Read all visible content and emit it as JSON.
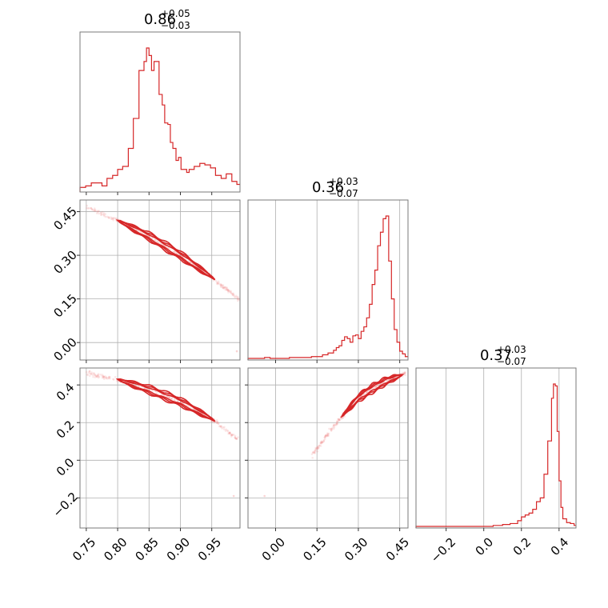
{
  "chart_data": [
    {
      "type": "histogram",
      "panel": "p0-hist",
      "title_median": "0.86",
      "title_plus": "+0.05",
      "title_minus": "−0.03",
      "xlim": [
        0.74,
        0.995
      ],
      "xticks": [
        0.75,
        0.8,
        0.85,
        0.9,
        0.95
      ],
      "xtick_labels": [
        "0.75",
        "0.80",
        "0.85",
        "0.90",
        "0.95"
      ],
      "bins": [
        0.74,
        0.749,
        0.758,
        0.766,
        0.775,
        0.783,
        0.792,
        0.8,
        0.808,
        0.817,
        0.825,
        0.834,
        0.838,
        0.842,
        0.846,
        0.85,
        0.854,
        0.858,
        0.866,
        0.871,
        0.875,
        0.88,
        0.884,
        0.888,
        0.893,
        0.897,
        0.901,
        0.905,
        0.91,
        0.914,
        0.922,
        0.931,
        0.939,
        0.948,
        0.956,
        0.965,
        0.973,
        0.982,
        0.99,
        0.995
      ],
      "counts": [
        2,
        3,
        5,
        5,
        3,
        8,
        10,
        14,
        16,
        28,
        48,
        80,
        80,
        86,
        95,
        90,
        80,
        86,
        64,
        57,
        45,
        44,
        32,
        28,
        20,
        22,
        14,
        14,
        12,
        14,
        16,
        18,
        17,
        15,
        10,
        8,
        11,
        6,
        4
      ]
    },
    {
      "type": "histogram",
      "panel": "p1-hist",
      "title_median": "0.36",
      "title_plus": "+0.03",
      "title_minus": "−0.07",
      "xlim": [
        -0.1,
        0.48
      ],
      "xticks": [
        0.0,
        0.15,
        0.3,
        0.45
      ],
      "xtick_labels": [
        "0.00",
        "0.15",
        "0.30",
        "0.45"
      ],
      "bins": [
        -0.1,
        -0.04,
        -0.02,
        0.05,
        0.1,
        0.13,
        0.15,
        0.17,
        0.19,
        0.21,
        0.22,
        0.23,
        0.24,
        0.25,
        0.26,
        0.27,
        0.28,
        0.29,
        0.3,
        0.31,
        0.32,
        0.33,
        0.34,
        0.35,
        0.36,
        0.37,
        0.38,
        0.39,
        0.4,
        0.41,
        0.42,
        0.43,
        0.44,
        0.45,
        0.46,
        0.47,
        0.48
      ],
      "counts": [
        0,
        1,
        0,
        1,
        1,
        2,
        2,
        4,
        6,
        9,
        12,
        14,
        20,
        24,
        22,
        18,
        25,
        26,
        22,
        30,
        35,
        45,
        60,
        82,
        98,
        125,
        140,
        155,
        158,
        108,
        66,
        32,
        18,
        8,
        5,
        2
      ]
    },
    {
      "type": "histogram",
      "panel": "p2-hist",
      "title_median": "0.37",
      "title_plus": "+0.03",
      "title_minus": "−0.07",
      "xlim": [
        -0.36,
        0.49
      ],
      "xticks": [
        -0.2,
        0.0,
        0.2,
        0.4
      ],
      "xtick_labels": [
        "−0.2",
        "0.0",
        "0.2",
        "0.4"
      ],
      "bins": [
        -0.36,
        0.05,
        0.1,
        0.14,
        0.18,
        0.2,
        0.22,
        0.24,
        0.26,
        0.28,
        0.3,
        0.32,
        0.34,
        0.36,
        0.37,
        0.38,
        0.39,
        0.4,
        0.41,
        0.42,
        0.44,
        0.46,
        0.48,
        0.49
      ],
      "counts": [
        0,
        1,
        2,
        3,
        6,
        10,
        12,
        14,
        18,
        26,
        30,
        55,
        90,
        135,
        150,
        148,
        100,
        48,
        20,
        8,
        4,
        3,
        1
      ]
    },
    {
      "type": "scatter",
      "panel": "p10",
      "xlim": [
        0.74,
        0.995
      ],
      "ylim": [
        -0.06,
        0.49
      ],
      "yticks": [
        0.0,
        0.15,
        0.3,
        0.45
      ],
      "ytick_labels": [
        "0.00",
        "0.15",
        "0.30",
        "0.45"
      ],
      "trend": [
        [
          0.75,
          0.465
        ],
        [
          0.8,
          0.42
        ],
        [
          0.85,
          0.365
        ],
        [
          0.9,
          0.3
        ],
        [
          0.95,
          0.225
        ],
        [
          0.995,
          0.145
        ]
      ],
      "contour_x_range": [
        0.8,
        0.955
      ],
      "outliers": [
        [
          0.99,
          -0.03
        ]
      ]
    },
    {
      "type": "scatter",
      "panel": "p20",
      "xlim": [
        0.74,
        0.995
      ],
      "ylim": [
        -0.36,
        0.49
      ],
      "yticks": [
        -0.2,
        0.0,
        0.2,
        0.4
      ],
      "ytick_labels": [
        "−0.2",
        "0.0",
        "0.2",
        "0.4"
      ],
      "trend": [
        [
          0.75,
          0.46
        ],
        [
          0.8,
          0.43
        ],
        [
          0.85,
          0.375
        ],
        [
          0.9,
          0.31
        ],
        [
          0.95,
          0.22
        ],
        [
          0.995,
          0.1
        ]
      ],
      "contour_x_range": [
        0.8,
        0.955
      ],
      "outliers": [
        [
          0.985,
          -0.19
        ]
      ]
    },
    {
      "type": "scatter",
      "panel": "p21",
      "xlim": [
        -0.1,
        0.48
      ],
      "ylim": [
        -0.36,
        0.49
      ],
      "trend": [
        [
          0.13,
          0.02
        ],
        [
          0.2,
          0.16
        ],
        [
          0.25,
          0.25
        ],
        [
          0.3,
          0.33
        ],
        [
          0.35,
          0.38
        ],
        [
          0.4,
          0.42
        ],
        [
          0.47,
          0.46
        ]
      ],
      "contour_x_range": [
        0.24,
        0.46
      ],
      "outliers": [
        [
          -0.04,
          -0.19
        ]
      ]
    }
  ]
}
